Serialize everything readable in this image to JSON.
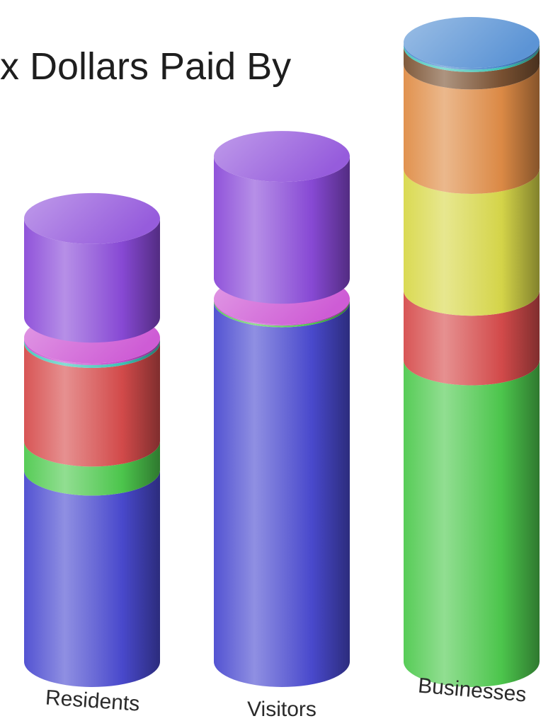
{
  "chart_data": {
    "type": "bar",
    "style": "stacked 3d cylinder",
    "title": "Tax Dollars Paid By",
    "title_visible": "x Dollars Paid By",
    "categories": [
      "Residents",
      "Visitors",
      "Businesses"
    ],
    "series": [
      {
        "color": "#4a4ad0",
        "values": [
          33,
          62,
          0
        ]
      },
      {
        "color": "#4ec94e",
        "values": [
          5,
          0.3,
          52
        ]
      },
      {
        "color": "#d64c4c",
        "values": [
          17,
          0,
          12
        ]
      },
      {
        "color": "#d8d84a",
        "values": [
          0,
          0,
          21
        ]
      },
      {
        "color": "#df8c46",
        "values": [
          0,
          0,
          18
        ]
      },
      {
        "color": "#7a5232",
        "values": [
          0,
          0,
          3
        ]
      },
      {
        "color": "#3fc6b8",
        "values": [
          0.5,
          0,
          0.4
        ]
      },
      {
        "color": "#c94ad0",
        "values": [
          0.3,
          0.2,
          0
        ]
      },
      {
        "color": "#4a88d0",
        "values": [
          0,
          0,
          0.3
        ]
      }
    ],
    "exploded_segment": {
      "color": "#8a4ad8",
      "values": [
        17,
        21,
        0
      ]
    },
    "legend": "none",
    "grid": false
  }
}
